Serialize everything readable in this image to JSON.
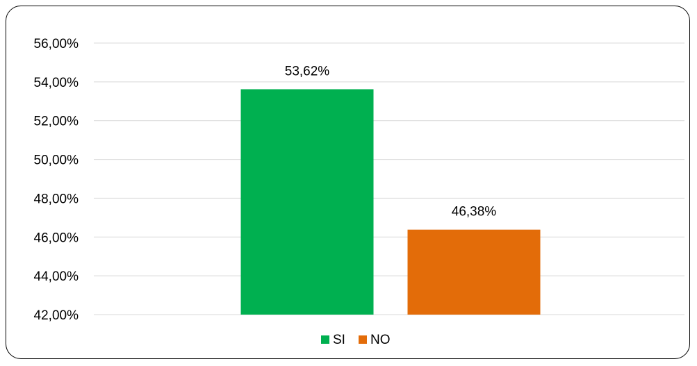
{
  "chart_data": {
    "type": "bar",
    "categories": [
      "SI",
      "NO"
    ],
    "values": [
      53.62,
      46.38
    ],
    "value_labels": [
      "53,62%",
      "46,38%"
    ],
    "colors": [
      "#00b050",
      "#e36c09"
    ],
    "ylim": [
      42,
      56
    ],
    "ytick_values": [
      42,
      44,
      46,
      48,
      50,
      52,
      54,
      56
    ],
    "ytick_labels": [
      "42,00%",
      "44,00%",
      "46,00%",
      "48,00%",
      "50,00%",
      "52,00%",
      "54,00%",
      "56,00%"
    ],
    "grid": true,
    "grid_color": "#d9d9d9",
    "legend_position": "bottom",
    "legend": [
      {
        "label": "SI",
        "color": "#00b050"
      },
      {
        "label": "NO",
        "color": "#e36c09"
      }
    ],
    "title": "",
    "xlabel": "",
    "ylabel": ""
  }
}
